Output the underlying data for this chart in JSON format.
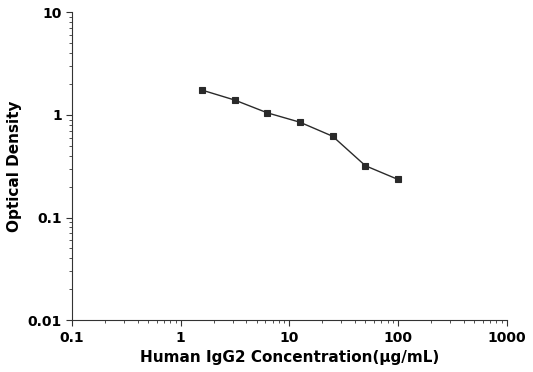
{
  "x_values": [
    1.5625,
    3.125,
    6.25,
    12.5,
    25,
    50,
    100
  ],
  "y_values": [
    1.75,
    1.4,
    1.05,
    0.85,
    0.62,
    0.32,
    0.235
  ],
  "xlim": [
    0.1,
    1000
  ],
  "ylim": [
    0.01,
    10
  ],
  "xlabel": "Human IgG2 Concentration(μg/mL)",
  "ylabel": "Optical Density",
  "line_color": "#2a2a2a",
  "marker": "s",
  "marker_size": 5,
  "marker_facecolor": "#2a2a2a",
  "marker_edgecolor": "#2a2a2a",
  "linewidth": 1.0,
  "xlabel_fontsize": 11,
  "ylabel_fontsize": 11,
  "tick_fontsize": 10,
  "background_color": "#ffffff",
  "x_tick_labels": [
    "0.1",
    "1",
    "10",
    "100",
    "1000"
  ],
  "x_tick_values": [
    0.1,
    1,
    10,
    100,
    1000
  ],
  "y_tick_labels": [
    "0.01",
    "0.1",
    "1",
    "10"
  ],
  "y_tick_values": [
    0.01,
    0.1,
    1,
    10
  ]
}
